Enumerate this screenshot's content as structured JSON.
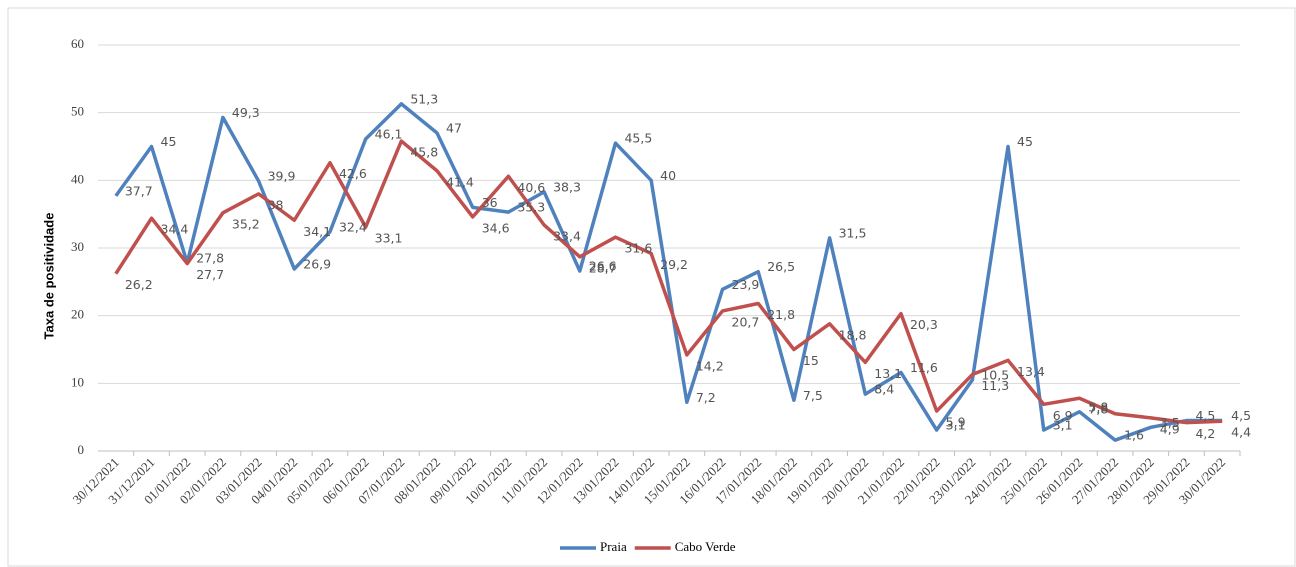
{
  "chart_data": {
    "type": "line",
    "y_label": "Taxa de positividade",
    "categories": [
      "30/12/2021",
      "31/12/2021",
      "01/01/2022",
      "02/01/2022",
      "03/01/2022",
      "04/01/2022",
      "05/01/2022",
      "06/01/2022",
      "07/01/2022",
      "08/01/2022",
      "09/01/2022",
      "10/01/2022",
      "11/01/2022",
      "12/01/2022",
      "13/01/2022",
      "14/01/2022",
      "15/01/2022",
      "16/01/2022",
      "17/01/2022",
      "18/01/2022",
      "19/01/2022",
      "20/01/2022",
      "21/01/2022",
      "22/01/2022",
      "23/01/2022",
      "24/01/2022",
      "25/01/2022",
      "26/01/2022",
      "27/01/2022",
      "28/01/2022",
      "29/01/2022",
      "30/01/2022"
    ],
    "series": [
      {
        "name": "Praia",
        "color": "#4f81bd",
        "values": [
          37.7,
          45,
          27.8,
          49.3,
          39.9,
          26.9,
          32.4,
          46.1,
          51.3,
          47,
          36,
          35.3,
          38.3,
          26.6,
          45.5,
          40,
          7.2,
          23.9,
          26.5,
          7.5,
          31.5,
          8.4,
          11.6,
          3.1,
          10.5,
          45,
          3.1,
          5.8,
          1.6,
          3.5,
          4.5,
          4.5
        ],
        "value_labels": [
          "37,7",
          "45",
          "27,8",
          "49,3",
          "39,9",
          "26,9",
          "32,4",
          "46,1",
          "51,3",
          "47",
          "36",
          "35,3",
          "38,3",
          "26,6",
          "45,5",
          "40",
          "7,2",
          "23,9",
          "26,5",
          "7,5",
          "31,5",
          "8,4",
          "11,6",
          "3,1",
          "10,5",
          "45",
          "3,1",
          "5,8",
          "1,6",
          "3,5",
          "4,5",
          "4,5"
        ]
      },
      {
        "name": "Cabo Verde",
        "color": "#c0504d",
        "values": [
          26.2,
          34.4,
          27.7,
          35.2,
          38,
          34.1,
          42.6,
          33.1,
          45.8,
          41.4,
          34.6,
          40.6,
          33.4,
          28.7,
          31.6,
          29.2,
          14.2,
          20.7,
          21.8,
          15,
          18.8,
          13.1,
          20.3,
          5.9,
          11.3,
          13.4,
          6.9,
          7.8,
          5.5,
          4.9,
          4.2,
          4.4
        ],
        "value_labels": [
          "26,2",
          "34,4",
          "27,7",
          "35,2",
          "38",
          "34,1",
          "42,6",
          "33,1",
          "45,8",
          "41,4",
          "34,6",
          "40,6",
          "33,4",
          "28,7",
          "31,6",
          "29,2",
          "14,2",
          "20,7",
          "21,8",
          "15",
          "18,8",
          "13,1",
          "20,3",
          "5,9",
          "11,3",
          "13,4",
          "6,9",
          "7,8",
          null,
          "4,9",
          "4,2",
          "4,4"
        ]
      }
    ],
    "ylim": [
      0,
      60
    ],
    "yticks": [
      0,
      10,
      20,
      30,
      40,
      50,
      60
    ],
    "grid": true,
    "legend": "bottom"
  }
}
